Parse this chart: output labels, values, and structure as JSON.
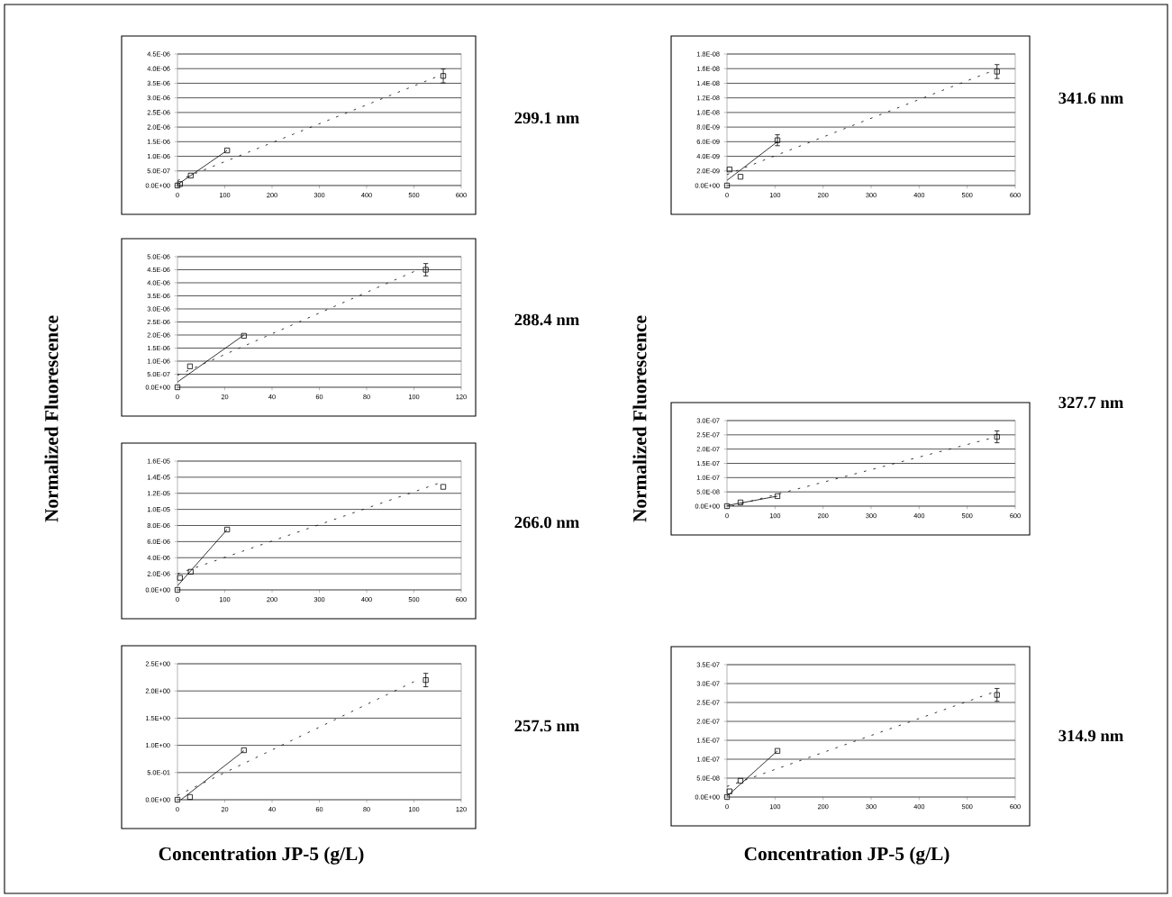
{
  "chart_data": [
    {
      "type": "scatter",
      "annotations": [
        "299.1 nm"
      ],
      "grid": "y",
      "xlim": [
        0,
        600
      ],
      "ylim": [
        0,
        4.5e-06
      ],
      "xticks": [
        0,
        100,
        200,
        300,
        400,
        500,
        600
      ],
      "yticks": [
        {
          "value": 0,
          "label": "0.0E+00"
        },
        {
          "value": 5e-07,
          "label": "5.0E-07"
        },
        {
          "value": 1e-06,
          "label": "1.0E-06"
        },
        {
          "value": 1.5e-06,
          "label": "1.5E-06"
        },
        {
          "value": 2e-06,
          "label": "2.0E-06"
        },
        {
          "value": 2.5e-06,
          "label": "2.5E-06"
        },
        {
          "value": 3e-06,
          "label": "3.0E-06"
        },
        {
          "value": 3.5e-06,
          "label": "3.5E-06"
        },
        {
          "value": 4e-06,
          "label": "4.0E-06"
        },
        {
          "value": 4.5e-06,
          "label": "4.5E-06"
        }
      ],
      "series": [
        {
          "type": "scatter",
          "marker": "square",
          "color": "#000000",
          "x": [
            0,
            5.3,
            28.1,
            105,
            562
          ],
          "values": [
            0,
            5e-08,
            3.4e-07,
            1.2e-06,
            3.75e-06
          ],
          "errors": [
            null,
            null,
            null,
            null,
            2.5e-07
          ]
        },
        {
          "type": "line",
          "marker": "none",
          "line_style": "solid",
          "color": "#000000",
          "x": [
            0,
            105
          ],
          "values": [
            3e-08,
            1.2e-06
          ]
        },
        {
          "type": "line",
          "marker": "none",
          "line_style": "dashed",
          "color": "#000000",
          "x": [
            0,
            545
          ],
          "values": [
            1.7e-07,
            3.7e-06
          ]
        }
      ]
    },
    {
      "type": "scatter",
      "annotations": [
        "288.4 nm"
      ],
      "ylabel": "Normalized Fluorescence",
      "grid": "y",
      "xlim": [
        0,
        120
      ],
      "ylim": [
        0,
        5e-06
      ],
      "xticks": [
        0,
        20,
        40,
        60,
        80,
        100,
        120
      ],
      "yticks": [
        {
          "value": 0,
          "label": "0.0E+00"
        },
        {
          "value": 5e-07,
          "label": "5.0E-07"
        },
        {
          "value": 1e-06,
          "label": "1.0E-06"
        },
        {
          "value": 1.5e-06,
          "label": "1.5E-06"
        },
        {
          "value": 2e-06,
          "label": "2.0E-06"
        },
        {
          "value": 2.5e-06,
          "label": "2.5E-06"
        },
        {
          "value": 3e-06,
          "label": "3.0E-06"
        },
        {
          "value": 3.5e-06,
          "label": "3.5E-06"
        },
        {
          "value": 4e-06,
          "label": "4.0E-06"
        },
        {
          "value": 4.5e-06,
          "label": "4.5E-06"
        },
        {
          "value": 5e-06,
          "label": "5.0E-06"
        }
      ],
      "series": [
        {
          "type": "scatter",
          "marker": "square",
          "color": "#000000",
          "x": [
            0,
            5.3,
            28.1,
            105
          ],
          "values": [
            0,
            8e-07,
            1.97e-06,
            4.5e-06
          ],
          "errors": [
            null,
            null,
            null,
            2.5e-07
          ]
        },
        {
          "type": "line",
          "marker": "none",
          "line_style": "solid",
          "color": "#000000",
          "x": [
            0,
            28.1
          ],
          "values": [
            2e-07,
            2e-06
          ]
        },
        {
          "type": "line",
          "marker": "none",
          "line_style": "dashed",
          "color": "#000000",
          "x": [
            0,
            100
          ],
          "values": [
            4.6e-07,
            4.43e-06
          ]
        }
      ]
    },
    {
      "type": "scatter",
      "annotations": [
        "266.0 nm"
      ],
      "grid": "y",
      "xlim": [
        0,
        600
      ],
      "ylim": [
        0,
        1.6e-05
      ],
      "xticks": [
        0,
        100,
        200,
        300,
        400,
        500,
        600
      ],
      "yticks": [
        {
          "value": 0,
          "label": "0.0E+00"
        },
        {
          "value": 2e-06,
          "label": "2.0E-06"
        },
        {
          "value": 4e-06,
          "label": "4.0E-06"
        },
        {
          "value": 6e-06,
          "label": "6.0E-06"
        },
        {
          "value": 8e-06,
          "label": "8.0E-06"
        },
        {
          "value": 1e-05,
          "label": "1.0E-05"
        },
        {
          "value": 1.2e-05,
          "label": "1.2E-05"
        },
        {
          "value": 1.4e-05,
          "label": "1.4E-05"
        },
        {
          "value": 1.6e-05,
          "label": "1.6E-05"
        }
      ],
      "series": [
        {
          "type": "scatter",
          "marker": "square",
          "color": "#000000",
          "x": [
            0,
            5.3,
            28.1,
            105,
            562
          ],
          "values": [
            0,
            1.5e-06,
            2.25e-06,
            7.5e-06,
            1.28e-05
          ]
        },
        {
          "type": "line",
          "marker": "none",
          "line_style": "solid",
          "color": "#000000",
          "x": [
            0,
            105
          ],
          "values": [
            5e-07,
            7.5e-06
          ]
        },
        {
          "type": "line",
          "marker": "none",
          "line_style": "dashed",
          "color": "#000000",
          "x": [
            0,
            550
          ],
          "values": [
            2e-06,
            1.32e-05
          ]
        }
      ]
    },
    {
      "type": "scatter",
      "annotations": [
        "257.5 nm"
      ],
      "xlabel": "Concentration JP-5 (g/L)",
      "grid": "y",
      "xlim": [
        0,
        120
      ],
      "ylim": [
        0,
        2.5
      ],
      "xticks": [
        0,
        20,
        40,
        60,
        80,
        100,
        120
      ],
      "yticks": [
        {
          "value": 0,
          "label": "0.0E+00"
        },
        {
          "value": 0.5,
          "label": "5.0E-01"
        },
        {
          "value": 1,
          "label": "1.0E+00"
        },
        {
          "value": 1.5,
          "label": "1.5E+00"
        },
        {
          "value": 2,
          "label": "2.0E+00"
        },
        {
          "value": 2.5,
          "label": "2.5E+00"
        }
      ],
      "series": [
        {
          "type": "scatter",
          "marker": "square",
          "color": "#000000",
          "x": [
            0,
            5.3,
            28.1,
            105
          ],
          "values": [
            0,
            0.05,
            0.91,
            2.2
          ],
          "errors": [
            null,
            null,
            null,
            0.13
          ]
        },
        {
          "type": "line",
          "marker": "none",
          "line_style": "solid",
          "color": "#000000",
          "x": [
            1.5,
            28.1
          ],
          "values": [
            0,
            0.9
          ]
        },
        {
          "type": "line",
          "marker": "none",
          "line_style": "dashed",
          "color": "#000000",
          "x": [
            0,
            100
          ],
          "values": [
            0.08,
            2.17
          ]
        }
      ]
    },
    {
      "type": "scatter",
      "annotations": [
        "341.6 nm"
      ],
      "grid": "y",
      "xlim": [
        0,
        600
      ],
      "ylim": [
        0,
        1.8e-08
      ],
      "xticks": [
        0,
        100,
        200,
        300,
        400,
        500,
        600
      ],
      "yticks": [
        {
          "value": 0,
          "label": "0.0E+00"
        },
        {
          "value": 2e-09,
          "label": "2.0E-09"
        },
        {
          "value": 4e-09,
          "label": "4.0E-09"
        },
        {
          "value": 6e-09,
          "label": "6.0E-09"
        },
        {
          "value": 8e-09,
          "label": "8.0E-09"
        },
        {
          "value": 1e-08,
          "label": "1.0E-08"
        },
        {
          "value": 1.2e-08,
          "label": "1.2E-08"
        },
        {
          "value": 1.4e-08,
          "label": "1.4E-08"
        },
        {
          "value": 1.6e-08,
          "label": "1.6E-08"
        },
        {
          "value": 1.8e-08,
          "label": "1.8E-08"
        }
      ],
      "series": [
        {
          "type": "scatter",
          "marker": "square",
          "color": "#000000",
          "x": [
            0,
            5.3,
            28.1,
            105,
            562
          ],
          "values": [
            0,
            2.2e-09,
            1.2e-09,
            6.2e-09,
            1.56e-08
          ],
          "errors": [
            null,
            null,
            null,
            8e-10,
            1e-09
          ]
        },
        {
          "type": "line",
          "marker": "none",
          "line_style": "solid",
          "color": "#000000",
          "x": [
            0,
            105
          ],
          "values": [
            7e-10,
            6e-09
          ]
        },
        {
          "type": "line",
          "marker": "none",
          "line_style": "dashed",
          "color": "#000000",
          "x": [
            0,
            545
          ],
          "values": [
            1.5e-09,
            1.55e-08
          ]
        }
      ]
    },
    {
      "type": "scatter",
      "annotations": [
        "327.7 nm"
      ],
      "ylabel": "Normalized Fluorescence",
      "grid": "y",
      "xlim": [
        0,
        600
      ],
      "ylim": [
        0,
        3e-07
      ],
      "xticks": [
        0,
        100,
        200,
        300,
        400,
        500,
        600
      ],
      "yticks": [
        {
          "value": 0,
          "label": "0.0E+00"
        },
        {
          "value": 5e-08,
          "label": "5.0E-08"
        },
        {
          "value": 1e-07,
          "label": "1.0E-07"
        },
        {
          "value": 1.5e-07,
          "label": "1.5E-07"
        },
        {
          "value": 2e-07,
          "label": "2.0E-07"
        },
        {
          "value": 2.5e-07,
          "label": "2.5E-07"
        },
        {
          "value": 3e-07,
          "label": "3.0E-07"
        }
      ],
      "series": [
        {
          "type": "scatter",
          "marker": "square",
          "color": "#000000",
          "x": [
            0,
            28.1,
            105,
            562
          ],
          "values": [
            0,
            1.3e-08,
            3.5e-08,
            2.43e-07
          ],
          "errors": [
            null,
            null,
            null,
            2.2e-08
          ]
        },
        {
          "type": "line",
          "marker": "none",
          "line_style": "solid",
          "color": "#000000",
          "x": [
            0,
            105
          ],
          "values": [
            2e-09,
            3.5e-08
          ]
        },
        {
          "type": "line",
          "marker": "none",
          "line_style": "dashed",
          "color": "#000000",
          "x": [
            10,
            545
          ],
          "values": [
            0,
            2.36e-07
          ]
        }
      ]
    },
    {
      "type": "scatter",
      "annotations": [
        "314.9 nm"
      ],
      "xlabel": "Concentration JP-5 (g/L)",
      "grid": "y",
      "xlim": [
        0,
        600
      ],
      "ylim": [
        0,
        3.5e-07
      ],
      "xticks": [
        0,
        100,
        200,
        300,
        400,
        500,
        600
      ],
      "yticks": [
        {
          "value": 0,
          "label": "0.0E+00"
        },
        {
          "value": 5e-08,
          "label": "5.0E-08"
        },
        {
          "value": 1e-07,
          "label": "1.0E-07"
        },
        {
          "value": 1.5e-07,
          "label": "1.5E-07"
        },
        {
          "value": 2e-07,
          "label": "2.0E-07"
        },
        {
          "value": 2.5e-07,
          "label": "2.5E-07"
        },
        {
          "value": 3e-07,
          "label": "3.0E-07"
        },
        {
          "value": 3.5e-07,
          "label": "3.5E-07"
        }
      ],
      "series": [
        {
          "type": "scatter",
          "marker": "square",
          "color": "#000000",
          "x": [
            0,
            5.3,
            28.1,
            105,
            562
          ],
          "values": [
            0,
            1.5e-08,
            4.3e-08,
            1.22e-07,
            2.7e-07
          ],
          "errors": [
            null,
            null,
            null,
            null,
            1.8e-08
          ]
        },
        {
          "type": "line",
          "marker": "none",
          "line_style": "solid",
          "color": "#000000",
          "x": [
            0,
            105
          ],
          "values": [
            2e-09,
            1.22e-07
          ]
        },
        {
          "type": "line",
          "marker": "none",
          "line_style": "dashed",
          "color": "#000000",
          "x": [
            0,
            550
          ],
          "values": [
            2.8e-08,
            2.75e-07
          ]
        }
      ]
    }
  ]
}
